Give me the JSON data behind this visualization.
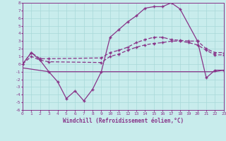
{
  "xlabel": "Windchill (Refroidissement éolien,°C)",
  "xlim": [
    0,
    23
  ],
  "ylim": [
    -6,
    8
  ],
  "xticks": [
    0,
    1,
    2,
    3,
    4,
    5,
    6,
    7,
    8,
    9,
    10,
    11,
    12,
    13,
    14,
    15,
    16,
    17,
    18,
    19,
    20,
    21,
    22,
    23
  ],
  "yticks": [
    -6,
    -5,
    -4,
    -3,
    -2,
    -1,
    0,
    1,
    2,
    3,
    4,
    5,
    6,
    7,
    8
  ],
  "background_color": "#c8ecec",
  "grid_color": "#a8d8d8",
  "line_color": "#883388",
  "series": {
    "zigzag": {
      "x": [
        0,
        1,
        2,
        3,
        4,
        5,
        6,
        7,
        8,
        9,
        10,
        11,
        12,
        13,
        14,
        15,
        16,
        17,
        18,
        20,
        21,
        22,
        23
      ],
      "y": [
        0,
        1.5,
        0.5,
        -1.0,
        -2.3,
        -4.5,
        -3.5,
        -4.8,
        -3.3,
        -1.0,
        3.5,
        4.5,
        5.5,
        6.3,
        7.3,
        7.5,
        7.5,
        8.0,
        7.2,
        3.0,
        -1.8,
        -0.8,
        -0.8
      ],
      "marker": true,
      "linestyle": "-"
    },
    "flat": {
      "x": [
        0,
        3,
        9,
        10,
        11,
        12,
        13,
        14,
        15,
        16,
        17,
        18,
        19,
        20,
        21,
        22,
        23
      ],
      "y": [
        -0.5,
        -1.0,
        -1.0,
        -1.0,
        -1.0,
        -1.0,
        -1.0,
        -1.0,
        -1.0,
        -1.0,
        -1.0,
        -1.0,
        -1.0,
        -1.0,
        -1.0,
        -1.0,
        -0.8
      ],
      "marker": false,
      "linestyle": "-"
    },
    "upper_rising": {
      "x": [
        0,
        1,
        2,
        3,
        9,
        10,
        11,
        12,
        13,
        14,
        15,
        16,
        17,
        18,
        19,
        20,
        21,
        22,
        23
      ],
      "y": [
        0,
        1.5,
        0.7,
        0.7,
        0.8,
        1.5,
        1.8,
        2.2,
        2.8,
        3.2,
        3.5,
        3.5,
        3.2,
        3.1,
        3.0,
        3.0,
        2.0,
        1.5,
        1.5
      ],
      "marker": true,
      "linestyle": "--"
    },
    "lower_rising": {
      "x": [
        0,
        1,
        2,
        3,
        9,
        10,
        11,
        12,
        13,
        14,
        15,
        16,
        17,
        18,
        19,
        20,
        21,
        22,
        23
      ],
      "y": [
        0,
        1.0,
        0.5,
        0.3,
        0.2,
        1.0,
        1.3,
        1.8,
        2.2,
        2.5,
        2.7,
        2.8,
        3.0,
        3.0,
        2.8,
        2.5,
        1.8,
        1.2,
        1.2
      ],
      "marker": true,
      "linestyle": "--"
    }
  }
}
